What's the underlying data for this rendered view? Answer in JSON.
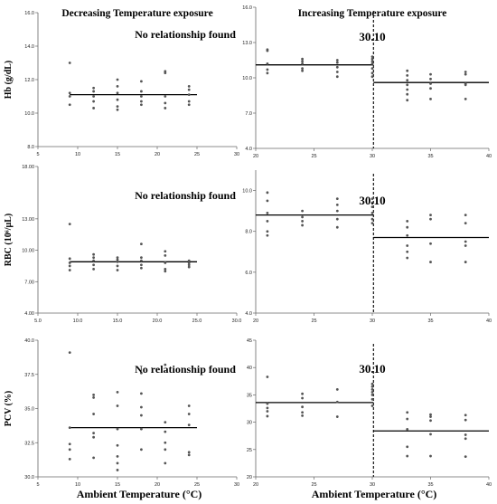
{
  "chart_data": [
    {
      "type": "scatter",
      "title": "Decreasing Temperature exposure",
      "ylabel": "Hb (g/dL)",
      "annotation": "No relationship found",
      "xlim": [
        5,
        30
      ],
      "xticks": [
        5,
        10,
        15,
        20,
        25,
        30
      ],
      "ylim": [
        8,
        16
      ],
      "yticks": [
        {
          "v": 8,
          "label": "8.0"
        },
        {
          "v": 10,
          "label": "10.0"
        },
        {
          "v": 12,
          "label": "12.0"
        },
        {
          "v": 14,
          "label": "14.0"
        },
        {
          "v": 16,
          "label": "16.0"
        }
      ],
      "points": [
        [
          9,
          13.0
        ],
        [
          9,
          11.2
        ],
        [
          9,
          11.0
        ],
        [
          9,
          10.5
        ],
        [
          12,
          11.5
        ],
        [
          12,
          11.3
        ],
        [
          12,
          11.0
        ],
        [
          12,
          10.7
        ],
        [
          12,
          10.3
        ],
        [
          15,
          12.0
        ],
        [
          15,
          11.6
        ],
        [
          15,
          11.2
        ],
        [
          15,
          10.8
        ],
        [
          15,
          10.4
        ],
        [
          15,
          10.2
        ],
        [
          18,
          11.9
        ],
        [
          18,
          11.3
        ],
        [
          18,
          11.0
        ],
        [
          18,
          10.7
        ],
        [
          18,
          10.5
        ],
        [
          21,
          12.5
        ],
        [
          21,
          12.4
        ],
        [
          21,
          11.0
        ],
        [
          21,
          10.6
        ],
        [
          21,
          10.3
        ],
        [
          24,
          11.6
        ],
        [
          24,
          11.4
        ],
        [
          24,
          11.1
        ],
        [
          24,
          10.7
        ],
        [
          24,
          10.5
        ]
      ],
      "segments": [
        {
          "x0": 9,
          "x1": 25,
          "y": 11.1
        }
      ]
    },
    {
      "type": "scatter",
      "title": "Increasing Temperature exposure",
      "annotation": "30.10",
      "threshold_x": 30.1,
      "xlim": [
        20,
        40
      ],
      "xticks": [
        20,
        25,
        30,
        35,
        40
      ],
      "ylim": [
        4,
        16
      ],
      "yticks": [
        {
          "v": 4,
          "label": "4.0"
        },
        {
          "v": 7,
          "label": "7.0"
        },
        {
          "v": 10,
          "label": "10.0"
        },
        {
          "v": 13,
          "label": "13.0"
        },
        {
          "v": 16,
          "label": "16.0"
        }
      ],
      "points": [
        [
          21,
          12.4
        ],
        [
          21,
          12.3
        ],
        [
          21,
          11.2
        ],
        [
          21,
          10.7
        ],
        [
          21,
          10.4
        ],
        [
          24,
          11.6
        ],
        [
          24,
          11.4
        ],
        [
          24,
          11.2
        ],
        [
          24,
          10.8
        ],
        [
          24,
          10.6
        ],
        [
          27,
          11.5
        ],
        [
          27,
          11.3
        ],
        [
          27,
          10.9
        ],
        [
          27,
          10.5
        ],
        [
          27,
          10.1
        ],
        [
          30,
          11.8
        ],
        [
          30,
          11.6
        ],
        [
          30,
          11.4
        ],
        [
          30,
          11.2
        ],
        [
          30,
          10.8
        ],
        [
          30,
          10.4
        ],
        [
          30,
          10.1
        ],
        [
          33,
          10.6
        ],
        [
          33,
          10.2
        ],
        [
          33,
          9.8
        ],
        [
          33,
          9.4
        ],
        [
          33,
          9.0
        ],
        [
          33,
          8.6
        ],
        [
          33,
          8.1
        ],
        [
          35,
          10.3
        ],
        [
          35,
          9.9
        ],
        [
          35,
          9.5
        ],
        [
          35,
          9.1
        ],
        [
          35,
          8.2
        ],
        [
          38,
          10.5
        ],
        [
          38,
          10.3
        ],
        [
          38,
          9.5
        ],
        [
          38,
          9.4
        ],
        [
          38,
          8.2
        ]
      ],
      "segments": [
        {
          "x0": 20,
          "x1": 30.1,
          "y": 11.1
        },
        {
          "x0": 30.1,
          "x1": 40,
          "y": 9.6
        }
      ]
    },
    {
      "type": "scatter",
      "ylabel": "RBC (10⁶/µL)",
      "annotation": "No relationship found",
      "xlim": [
        5,
        30
      ],
      "xticks": [
        {
          "v": 5,
          "label": "5.0"
        },
        {
          "v": 10,
          "label": "10.0"
        },
        {
          "v": 15,
          "label": "15.0"
        },
        {
          "v": 20,
          "label": "20.0"
        },
        {
          "v": 25,
          "label": "25.0"
        },
        {
          "v": 30,
          "label": "30.0"
        }
      ],
      "ylim": [
        4,
        18
      ],
      "yticks": [
        {
          "v": 4,
          "label": "4.00"
        },
        {
          "v": 7,
          "label": "7.00"
        },
        {
          "v": 10,
          "label": "10.00"
        },
        {
          "v": 13,
          "label": "13.00"
        },
        {
          "v": 18,
          "label": "18.00"
        }
      ],
      "points": [
        [
          9,
          12.5
        ],
        [
          9,
          9.2
        ],
        [
          9,
          8.8
        ],
        [
          9,
          8.5
        ],
        [
          9,
          8.1
        ],
        [
          12,
          9.6
        ],
        [
          12,
          9.3
        ],
        [
          12,
          9.0
        ],
        [
          12,
          8.6
        ],
        [
          12,
          8.2
        ],
        [
          15,
          9.3
        ],
        [
          15,
          9.1
        ],
        [
          15,
          8.9
        ],
        [
          15,
          8.5
        ],
        [
          15,
          8.1
        ],
        [
          18,
          10.6
        ],
        [
          18,
          9.3
        ],
        [
          18,
          9.0
        ],
        [
          18,
          8.6
        ],
        [
          18,
          8.3
        ],
        [
          21,
          9.9
        ],
        [
          21,
          9.5
        ],
        [
          21,
          8.8
        ],
        [
          21,
          8.2
        ],
        [
          21,
          8.0
        ],
        [
          24,
          9.0
        ],
        [
          24,
          8.8
        ],
        [
          24,
          8.6
        ],
        [
          24,
          8.4
        ]
      ],
      "segments": [
        {
          "x0": 9,
          "x1": 25,
          "y": 8.9
        }
      ]
    },
    {
      "type": "scatter",
      "annotation": "30.10",
      "threshold_x": 30.1,
      "xlim": [
        20,
        40
      ],
      "xticks": [
        20,
        25,
        30,
        35,
        40
      ],
      "ylim": [
        4,
        11
      ],
      "yticks": [
        {
          "v": 4,
          "label": "4.0"
        },
        {
          "v": 6,
          "label": "6.0"
        },
        {
          "v": 8,
          "label": "8.0"
        },
        {
          "v": 10,
          "label": "10.0"
        }
      ],
      "points": [
        [
          21,
          9.9
        ],
        [
          21,
          9.5
        ],
        [
          21,
          8.9
        ],
        [
          21,
          8.5
        ],
        [
          21,
          8.0
        ],
        [
          21,
          7.8
        ],
        [
          24,
          9.0
        ],
        [
          24,
          8.7
        ],
        [
          24,
          8.5
        ],
        [
          24,
          8.3
        ],
        [
          27,
          9.6
        ],
        [
          27,
          9.3
        ],
        [
          27,
          9.0
        ],
        [
          27,
          8.6
        ],
        [
          27,
          8.2
        ],
        [
          30,
          9.6
        ],
        [
          30,
          9.4
        ],
        [
          30,
          9.2
        ],
        [
          30,
          8.9
        ],
        [
          30,
          8.6
        ],
        [
          30,
          8.4
        ],
        [
          33,
          8.5
        ],
        [
          33,
          8.2
        ],
        [
          33,
          7.8
        ],
        [
          33,
          7.3
        ],
        [
          33,
          7.0
        ],
        [
          33,
          6.7
        ],
        [
          35,
          8.8
        ],
        [
          35,
          8.6
        ],
        [
          35,
          7.4
        ],
        [
          35,
          6.5
        ],
        [
          38,
          8.8
        ],
        [
          38,
          8.4
        ],
        [
          38,
          7.5
        ],
        [
          38,
          7.3
        ],
        [
          38,
          6.5
        ]
      ],
      "segments": [
        {
          "x0": 20,
          "x1": 30.1,
          "y": 8.8
        },
        {
          "x0": 30.1,
          "x1": 40,
          "y": 7.7
        }
      ]
    },
    {
      "type": "scatter",
      "ylabel": "PCV (%)",
      "annotation": "No relationship found",
      "xlabel": "Ambient Temperature (°C)",
      "xlim": [
        5,
        30
      ],
      "xticks": [
        5,
        10,
        15,
        20,
        25,
        30
      ],
      "ylim": [
        30,
        40
      ],
      "yticks": [
        {
          "v": 30,
          "label": "30.0"
        },
        {
          "v": 32.5,
          "label": "32.5"
        },
        {
          "v": 35,
          "label": "35.0"
        },
        {
          "v": 37.5,
          "label": "37.5"
        },
        {
          "v": 40,
          "label": "40.0"
        }
      ],
      "points": [
        [
          9,
          39.1
        ],
        [
          9,
          33.6
        ],
        [
          9,
          32.4
        ],
        [
          9,
          32.0
        ],
        [
          9,
          31.3
        ],
        [
          12,
          36.0
        ],
        [
          12,
          35.8
        ],
        [
          12,
          34.6
        ],
        [
          12,
          33.2
        ],
        [
          12,
          32.9
        ],
        [
          12,
          31.4
        ],
        [
          15,
          36.2
        ],
        [
          15,
          35.2
        ],
        [
          15,
          33.5
        ],
        [
          15,
          32.3
        ],
        [
          15,
          31.5
        ],
        [
          15,
          31.0
        ],
        [
          15,
          30.5
        ],
        [
          18,
          37.6
        ],
        [
          18,
          36.1
        ],
        [
          18,
          35.1
        ],
        [
          18,
          34.5
        ],
        [
          18,
          33.5
        ],
        [
          18,
          32.0
        ],
        [
          21,
          38.2
        ],
        [
          21,
          34.0
        ],
        [
          21,
          33.3
        ],
        [
          21,
          32.5
        ],
        [
          21,
          32.0
        ],
        [
          21,
          31.0
        ],
        [
          24,
          35.2
        ],
        [
          24,
          34.6
        ],
        [
          24,
          33.8
        ],
        [
          24,
          31.8
        ],
        [
          24,
          31.6
        ]
      ],
      "segments": [
        {
          "x0": 9,
          "x1": 25,
          "y": 33.6
        }
      ]
    },
    {
      "type": "scatter",
      "annotation": "30.10",
      "xlabel": "Ambient Temperature (°C)",
      "threshold_x": 30.1,
      "xlim": [
        20,
        40
      ],
      "xticks": [
        20,
        25,
        30,
        35,
        40
      ],
      "ylim": [
        20,
        45
      ],
      "yticks": [
        {
          "v": 20,
          "label": "20"
        },
        {
          "v": 25,
          "label": "25"
        },
        {
          "v": 30,
          "label": "30"
        },
        {
          "v": 35,
          "label": "35"
        },
        {
          "v": 40,
          "label": "40"
        },
        {
          "v": 45,
          "label": "45"
        }
      ],
      "points": [
        [
          21,
          38.3
        ],
        [
          21,
          33.4
        ],
        [
          21,
          32.6
        ],
        [
          21,
          32.0
        ],
        [
          21,
          31.1
        ],
        [
          24,
          35.2
        ],
        [
          24,
          34.4
        ],
        [
          24,
          32.8
        ],
        [
          24,
          31.8
        ],
        [
          24,
          31.2
        ],
        [
          27,
          36.0
        ],
        [
          27,
          33.7
        ],
        [
          27,
          31.0
        ],
        [
          30,
          37.0
        ],
        [
          30,
          36.5
        ],
        [
          30,
          36.0
        ],
        [
          30,
          35.5
        ],
        [
          30,
          35.0
        ],
        [
          30,
          34.2
        ],
        [
          30,
          33.0
        ],
        [
          33,
          31.8
        ],
        [
          33,
          30.6
        ],
        [
          33,
          28.7
        ],
        [
          33,
          25.5
        ],
        [
          33,
          23.8
        ],
        [
          35,
          31.4
        ],
        [
          35,
          31.0
        ],
        [
          35,
          30.3
        ],
        [
          35,
          27.8
        ],
        [
          35,
          23.8
        ],
        [
          38,
          31.3
        ],
        [
          38,
          30.4
        ],
        [
          38,
          27.7
        ],
        [
          38,
          27.0
        ],
        [
          38,
          23.7
        ]
      ],
      "segments": [
        {
          "x0": 20,
          "x1": 30.1,
          "y": 33.6
        },
        {
          "x0": 30.1,
          "x1": 40,
          "y": 28.4
        }
      ]
    }
  ]
}
